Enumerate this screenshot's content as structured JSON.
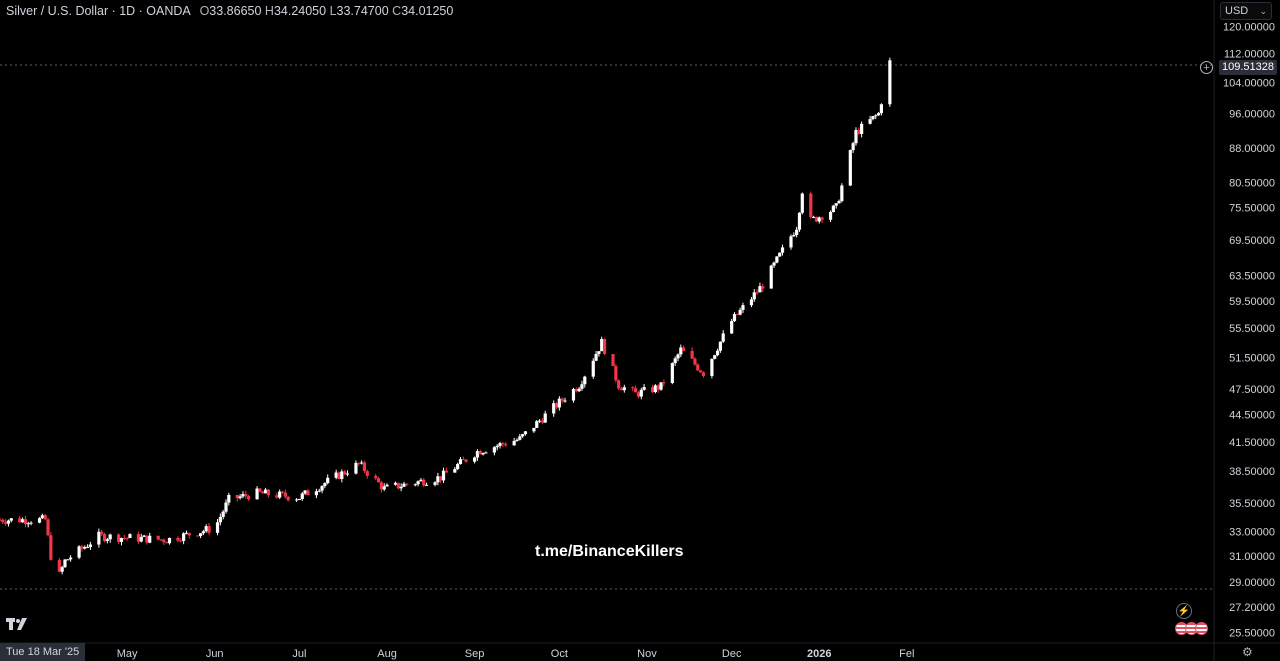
{
  "header": {
    "symbol": "Silver / U.S. Dollar · 1D · OANDA",
    "o_key": "O",
    "o_val": "33.86650",
    "h_key": "H",
    "h_val": "34.24050",
    "l_key": "L",
    "l_val": "33.74700",
    "c_key": "C",
    "c_val": "34.01250"
  },
  "currency": {
    "label": "USD",
    "chevron_icon": "chevron-down-icon"
  },
  "watermark": "t.me/BinanceKillers",
  "crosshair_date": "Tue 18 Mar '25",
  "last_price_label": "109.51328",
  "icons": [
    "tradingview-logo-icon",
    "add-alert-icon",
    "lightning-icon",
    "us-flag-icon",
    "settings-gear-icon"
  ],
  "colors": {
    "up": "#ffffff",
    "down": "#f23645",
    "background": "#000000",
    "text": "#d1d4dc"
  },
  "chart_data": {
    "type": "candlestick",
    "scale": "log",
    "ylim": [
      25.0,
      122.0
    ],
    "y_ticks": [
      "120.00000",
      "112.00000",
      "104.00000",
      "96.00000",
      "88.00000",
      "80.50000",
      "75.50000",
      "69.50000",
      "63.50000",
      "59.50000",
      "55.50000",
      "51.50000",
      "47.50000",
      "44.50000",
      "41.50000",
      "38.50000",
      "35.50000",
      "33.00000",
      "31.00000",
      "29.00000",
      "27.20000",
      "25.50000"
    ],
    "x_tick_labels": [
      "May",
      "Jun",
      "Jul",
      "Aug",
      "Sep",
      "Oct",
      "Nov",
      "Dec",
      "2026",
      "Fel"
    ],
    "series": [
      {
        "values": [
          {
            "x": "2025-03-17",
            "y": 34.0
          },
          {
            "x": "2025-04-02",
            "y": 34.0
          },
          {
            "x": "2025-04-04",
            "y": 31.0
          },
          {
            "x": "2025-04-07",
            "y": 29.5
          },
          {
            "x": "2025-04-09",
            "y": 30.6
          },
          {
            "x": "2025-04-21",
            "y": 32.6
          },
          {
            "x": "2025-05-15",
            "y": 32.3
          },
          {
            "x": "2025-06-01",
            "y": 33.3
          },
          {
            "x": "2025-06-06",
            "y": 35.8
          },
          {
            "x": "2025-06-16",
            "y": 36.4
          },
          {
            "x": "2025-07-01",
            "y": 36.0
          },
          {
            "x": "2025-07-11",
            "y": 37.5
          },
          {
            "x": "2025-07-22",
            "y": 39.2
          },
          {
            "x": "2025-07-31",
            "y": 36.8
          },
          {
            "x": "2025-08-20",
            "y": 37.9
          },
          {
            "x": "2025-09-02",
            "y": 40.5
          },
          {
            "x": "2025-09-17",
            "y": 41.8
          },
          {
            "x": "2025-09-30",
            "y": 45.6
          },
          {
            "x": "2025-10-08",
            "y": 48.0
          },
          {
            "x": "2025-10-16",
            "y": 53.5
          },
          {
            "x": "2025-10-22",
            "y": 48.0
          },
          {
            "x": "2025-10-28",
            "y": 46.9
          },
          {
            "x": "2025-11-06",
            "y": 47.8
          },
          {
            "x": "2025-11-13",
            "y": 52.5
          },
          {
            "x": "2025-11-21",
            "y": 49.5
          },
          {
            "x": "2025-12-01",
            "y": 56.5
          },
          {
            "x": "2025-12-12",
            "y": 62.0
          },
          {
            "x": "2025-12-24",
            "y": 72.0
          },
          {
            "x": "2025-12-26",
            "y": 79.0
          },
          {
            "x": "2025-12-29",
            "y": 73.0
          },
          {
            "x": "2026-01-07",
            "y": 75.5
          },
          {
            "x": "2026-01-14",
            "y": 91.5
          },
          {
            "x": "2026-01-22",
            "y": 96.0
          },
          {
            "x": "2026-01-26",
            "y": 109.5
          }
        ]
      }
    ]
  }
}
